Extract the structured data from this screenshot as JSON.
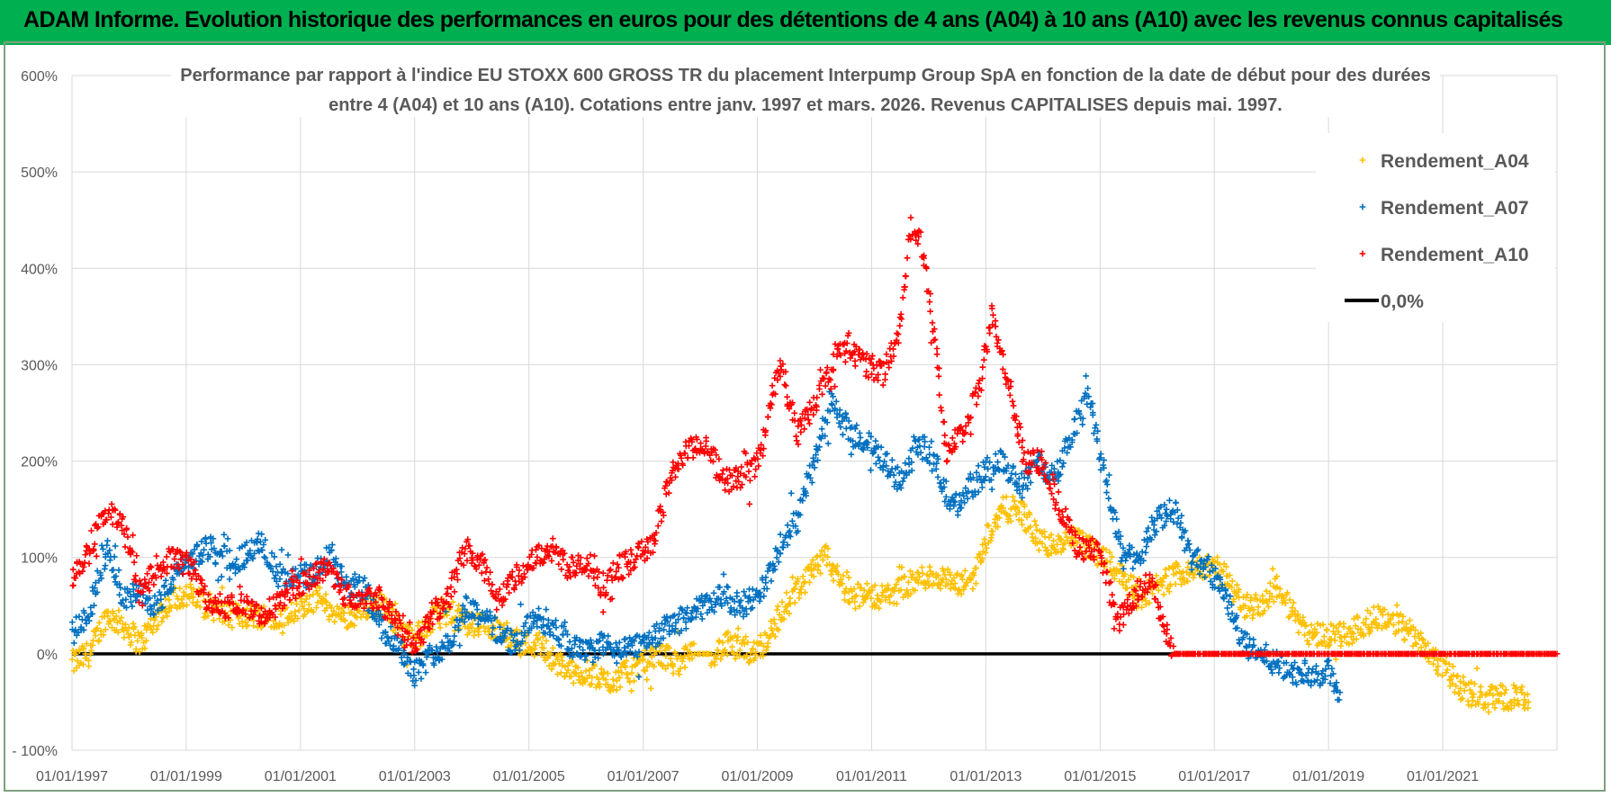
{
  "banner": {
    "text": "ADAM Informe. Evolution historique des performances en euros pour des détentions de 4 ans (A04) à 10 ans (A10) avec les revenus connus capitalisés",
    "color": "#00b050"
  },
  "chart_data": {
    "type": "scatter",
    "title_line1": "Performance par rapport à l'indice EU STOXX 600 GROSS TR  du placement Interpump Group SpA en fonction de la date de début pour des durées",
    "title_line2": "entre 4 (A04) et 10 ans (A10).  Cotations entre janv. 1997 et mars. 2026.  Revenus CAPITALISES  depuis mai. 1997.",
    "xlim": [
      1997.0,
      2023.0
    ],
    "ylim": [
      -100,
      600
    ],
    "x_ticks": [
      {
        "x": 1997,
        "label": "01/01/1997"
      },
      {
        "x": 1999,
        "label": "01/01/1999"
      },
      {
        "x": 2001,
        "label": "01/01/2001"
      },
      {
        "x": 2003,
        "label": "01/01/2003"
      },
      {
        "x": 2005,
        "label": "01/01/2005"
      },
      {
        "x": 2007,
        "label": "01/01/2007"
      },
      {
        "x": 2009,
        "label": "01/01/2009"
      },
      {
        "x": 2011,
        "label": "01/01/2011"
      },
      {
        "x": 2013,
        "label": "01/01/2013"
      },
      {
        "x": 2015,
        "label": "01/01/2015"
      },
      {
        "x": 2017,
        "label": "01/01/2017"
      },
      {
        "x": 2019,
        "label": "01/01/2019"
      },
      {
        "x": 2021,
        "label": "01/01/2021"
      }
    ],
    "y_ticks": [
      {
        "v": -100,
        "label": "- 100%"
      },
      {
        "v": 0,
        "label": "0%"
      },
      {
        "v": 100,
        "label": "100%"
      },
      {
        "v": 200,
        "label": "200%"
      },
      {
        "v": 300,
        "label": "300%"
      },
      {
        "v": 400,
        "label": "400%"
      },
      {
        "v": 500,
        "label": "500%"
      },
      {
        "v": 600,
        "label": "600%"
      }
    ],
    "grid": true,
    "legend_position": "top-right",
    "series": [
      {
        "name": "Rendement_A04",
        "color": "#ffc000",
        "points": [
          [
            1997.0,
            -10
          ],
          [
            1997.3,
            0
          ],
          [
            1997.6,
            40
          ],
          [
            1997.9,
            30
          ],
          [
            1998.2,
            10
          ],
          [
            1998.5,
            40
          ],
          [
            1998.8,
            60
          ],
          [
            1999.1,
            60
          ],
          [
            1999.4,
            50
          ],
          [
            1999.7,
            40
          ],
          [
            2000.0,
            40
          ],
          [
            2000.4,
            40
          ],
          [
            2000.7,
            40
          ],
          [
            2001.0,
            50
          ],
          [
            2001.3,
            60
          ],
          [
            2001.6,
            40
          ],
          [
            2001.9,
            40
          ],
          [
            2002.2,
            50
          ],
          [
            2002.5,
            50
          ],
          [
            2002.8,
            20
          ],
          [
            2003.1,
            20
          ],
          [
            2003.4,
            40
          ],
          [
            2003.7,
            40
          ],
          [
            2004.0,
            30
          ],
          [
            2004.3,
            30
          ],
          [
            2004.6,
            20
          ],
          [
            2004.9,
            10
          ],
          [
            2005.2,
            10
          ],
          [
            2005.5,
            -10
          ],
          [
            2005.8,
            -20
          ],
          [
            2006.1,
            -20
          ],
          [
            2006.4,
            -30
          ],
          [
            2006.7,
            -20
          ],
          [
            2007.0,
            -10
          ],
          [
            2007.3,
            0
          ],
          [
            2007.6,
            -10
          ],
          [
            2007.9,
            0
          ],
          [
            2008.2,
            0
          ],
          [
            2008.5,
            10
          ],
          [
            2008.8,
            0
          ],
          [
            2009.1,
            10
          ],
          [
            2009.3,
            30
          ],
          [
            2009.6,
            60
          ],
          [
            2009.9,
            80
          ],
          [
            2010.2,
            100
          ],
          [
            2010.4,
            80
          ],
          [
            2010.7,
            60
          ],
          [
            2011.0,
            60
          ],
          [
            2011.3,
            60
          ],
          [
            2011.6,
            70
          ],
          [
            2011.9,
            80
          ],
          [
            2012.2,
            80
          ],
          [
            2012.5,
            70
          ],
          [
            2012.8,
            80
          ],
          [
            2013.0,
            120
          ],
          [
            2013.3,
            150
          ],
          [
            2013.6,
            150
          ],
          [
            2013.9,
            120
          ],
          [
            2014.2,
            110
          ],
          [
            2014.5,
            120
          ],
          [
            2014.8,
            110
          ],
          [
            2015.1,
            100
          ],
          [
            2015.4,
            80
          ],
          [
            2015.7,
            60
          ],
          [
            2016.0,
            70
          ],
          [
            2016.3,
            80
          ],
          [
            2016.6,
            90
          ],
          [
            2016.9,
            90
          ],
          [
            2017.2,
            80
          ],
          [
            2017.5,
            50
          ],
          [
            2017.8,
            50
          ],
          [
            2018.1,
            70
          ],
          [
            2018.4,
            40
          ],
          [
            2018.7,
            20
          ],
          [
            2019.0,
            20
          ],
          [
            2019.3,
            20
          ],
          [
            2019.6,
            30
          ],
          [
            2019.9,
            40
          ],
          [
            2020.2,
            30
          ],
          [
            2020.5,
            20
          ],
          [
            2020.8,
            0
          ],
          [
            2021.1,
            -20
          ],
          [
            2021.4,
            -40
          ],
          [
            2021.7,
            -45
          ],
          [
            2022.0,
            -45
          ],
          [
            2022.3,
            -45
          ],
          [
            2022.5,
            -50
          ]
        ]
      },
      {
        "name": "Rendement_A07",
        "color": "#0070c0",
        "points": [
          [
            1997.0,
            20
          ],
          [
            1997.3,
            40
          ],
          [
            1997.6,
            110
          ],
          [
            1997.9,
            60
          ],
          [
            1998.2,
            60
          ],
          [
            1998.5,
            50
          ],
          [
            1998.8,
            80
          ],
          [
            1999.1,
            100
          ],
          [
            1999.4,
            110
          ],
          [
            1999.7,
            100
          ],
          [
            2000.0,
            100
          ],
          [
            2000.3,
            120
          ],
          [
            2000.6,
            80
          ],
          [
            2000.9,
            80
          ],
          [
            2001.2,
            80
          ],
          [
            2001.5,
            100
          ],
          [
            2001.8,
            70
          ],
          [
            2002.1,
            70
          ],
          [
            2002.4,
            30
          ],
          [
            2002.7,
            10
          ],
          [
            2003.0,
            -20
          ],
          [
            2003.3,
            0
          ],
          [
            2003.6,
            10
          ],
          [
            2003.9,
            50
          ],
          [
            2004.2,
            40
          ],
          [
            2004.5,
            20
          ],
          [
            2004.8,
            10
          ],
          [
            2005.1,
            40
          ],
          [
            2005.4,
            30
          ],
          [
            2005.7,
            10
          ],
          [
            2006.0,
            0
          ],
          [
            2006.3,
            10
          ],
          [
            2006.6,
            0
          ],
          [
            2006.9,
            10
          ],
          [
            2007.2,
            20
          ],
          [
            2007.5,
            30
          ],
          [
            2007.8,
            40
          ],
          [
            2008.1,
            50
          ],
          [
            2008.4,
            60
          ],
          [
            2008.7,
            50
          ],
          [
            2009.0,
            60
          ],
          [
            2009.2,
            80
          ],
          [
            2009.4,
            110
          ],
          [
            2009.7,
            140
          ],
          [
            2010.0,
            200
          ],
          [
            2010.3,
            260
          ],
          [
            2010.6,
            230
          ],
          [
            2010.9,
            220
          ],
          [
            2011.2,
            200
          ],
          [
            2011.5,
            180
          ],
          [
            2011.8,
            220
          ],
          [
            2012.1,
            200
          ],
          [
            2012.4,
            150
          ],
          [
            2012.7,
            170
          ],
          [
            2013.0,
            190
          ],
          [
            2013.3,
            200
          ],
          [
            2013.6,
            170
          ],
          [
            2013.9,
            200
          ],
          [
            2014.2,
            180
          ],
          [
            2014.5,
            230
          ],
          [
            2014.8,
            270
          ],
          [
            2015.1,
            180
          ],
          [
            2015.4,
            100
          ],
          [
            2015.7,
            100
          ],
          [
            2016.0,
            140
          ],
          [
            2016.3,
            150
          ],
          [
            2016.6,
            100
          ],
          [
            2016.9,
            90
          ],
          [
            2017.2,
            60
          ],
          [
            2017.5,
            10
          ],
          [
            2017.8,
            0
          ],
          [
            2018.1,
            -10
          ],
          [
            2018.4,
            -20
          ],
          [
            2018.7,
            -20
          ],
          [
            2019.0,
            -20
          ],
          [
            2019.2,
            -40
          ]
        ]
      },
      {
        "name": "Rendement_A10",
        "color": "#ff0000",
        "points": [
          [
            1997.0,
            80
          ],
          [
            1997.3,
            110
          ],
          [
            1997.6,
            150
          ],
          [
            1997.9,
            130
          ],
          [
            1998.2,
            60
          ],
          [
            1998.5,
            90
          ],
          [
            1998.8,
            100
          ],
          [
            1999.1,
            90
          ],
          [
            1999.4,
            50
          ],
          [
            1999.7,
            50
          ],
          [
            2000.0,
            50
          ],
          [
            2000.3,
            40
          ],
          [
            2000.6,
            50
          ],
          [
            2000.9,
            70
          ],
          [
            2001.2,
            80
          ],
          [
            2001.5,
            90
          ],
          [
            2001.8,
            60
          ],
          [
            2002.1,
            60
          ],
          [
            2002.4,
            60
          ],
          [
            2002.7,
            30
          ],
          [
            2003.0,
            10
          ],
          [
            2003.3,
            40
          ],
          [
            2003.6,
            60
          ],
          [
            2003.9,
            110
          ],
          [
            2004.2,
            90
          ],
          [
            2004.5,
            60
          ],
          [
            2004.8,
            80
          ],
          [
            2005.1,
            100
          ],
          [
            2005.4,
            110
          ],
          [
            2005.7,
            90
          ],
          [
            2006.0,
            90
          ],
          [
            2006.3,
            70
          ],
          [
            2006.6,
            90
          ],
          [
            2006.9,
            100
          ],
          [
            2007.2,
            120
          ],
          [
            2007.5,
            190
          ],
          [
            2007.8,
            210
          ],
          [
            2008.1,
            220
          ],
          [
            2008.4,
            180
          ],
          [
            2008.7,
            180
          ],
          [
            2009.0,
            200
          ],
          [
            2009.2,
            250
          ],
          [
            2009.4,
            300
          ],
          [
            2009.7,
            230
          ],
          [
            2010.0,
            260
          ],
          [
            2010.3,
            300
          ],
          [
            2010.6,
            320
          ],
          [
            2010.9,
            300
          ],
          [
            2011.2,
            290
          ],
          [
            2011.5,
            340
          ],
          [
            2011.7,
            450
          ],
          [
            2011.9,
            420
          ],
          [
            2012.1,
            330
          ],
          [
            2012.3,
            210
          ],
          [
            2012.6,
            230
          ],
          [
            2012.9,
            280
          ],
          [
            2013.1,
            350
          ],
          [
            2013.4,
            280
          ],
          [
            2013.7,
            200
          ],
          [
            2014.0,
            200
          ],
          [
            2014.3,
            150
          ],
          [
            2014.6,
            110
          ],
          [
            2014.9,
            110
          ],
          [
            2015.1,
            80
          ],
          [
            2015.3,
            30
          ],
          [
            2015.6,
            60
          ],
          [
            2015.9,
            80
          ],
          [
            2016.1,
            30
          ],
          [
            2016.3,
            0
          ],
          [
            2017.0,
            0
          ],
          [
            2018.0,
            0
          ],
          [
            2019.0,
            0
          ],
          [
            2020.0,
            0
          ],
          [
            2021.0,
            0
          ],
          [
            2022.0,
            0
          ],
          [
            2023.0,
            0
          ]
        ]
      },
      {
        "name": "0,0%",
        "color": "#000000",
        "type": "line",
        "x": [
          1997.0,
          2016.3
        ],
        "y": [
          0,
          0
        ]
      }
    ]
  }
}
